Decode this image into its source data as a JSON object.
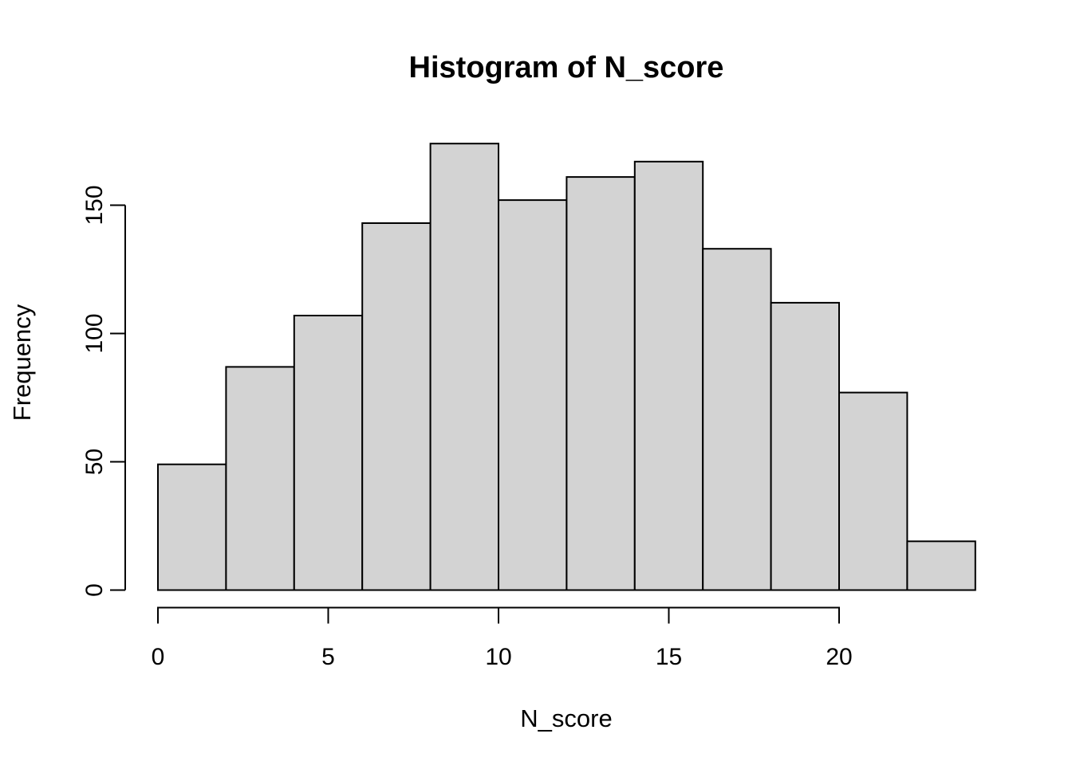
{
  "chart_data": {
    "type": "bar",
    "subtype": "histogram",
    "title": "Histogram of N_score",
    "xlabel": "N_score",
    "ylabel": "Frequency",
    "bin_start": 0,
    "bin_width": 2,
    "bin_edges": [
      0,
      2,
      4,
      6,
      8,
      10,
      12,
      14,
      16,
      18,
      20,
      22,
      24
    ],
    "counts": [
      49,
      87,
      107,
      143,
      174,
      152,
      161,
      167,
      133,
      112,
      77,
      19
    ],
    "x_ticks": [
      0,
      5,
      10,
      15,
      20
    ],
    "y_ticks": [
      0,
      50,
      100,
      150
    ],
    "xlim": [
      0,
      24
    ],
    "ylim": [
      0,
      175
    ],
    "grid": "off",
    "legend": "none",
    "bar_fill_color": "#D3D3D3",
    "bar_border_color": "#000000",
    "axis_color": "#000000",
    "background_color": "#FFFFFF"
  }
}
